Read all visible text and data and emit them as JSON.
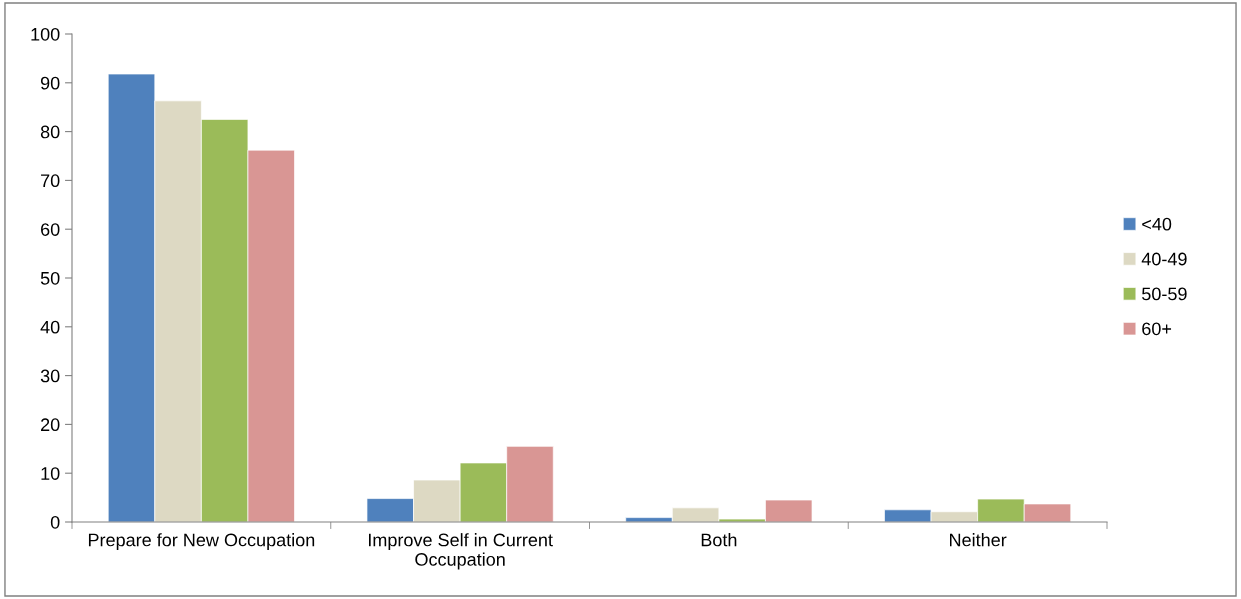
{
  "chart_data": {
    "type": "bar",
    "categories": [
      "Prepare for New Occupation",
      "Improve Self in Current\nOccupation",
      "Both",
      "Neither"
    ],
    "series": [
      {
        "name": "<40",
        "color": "#4f81bd",
        "values": [
          91.8,
          4.8,
          0.9,
          2.5
        ]
      },
      {
        "name": "40-49",
        "color": "#ddd9c3",
        "values": [
          86.3,
          8.6,
          2.9,
          2.1
        ]
      },
      {
        "name": "50-59",
        "color": "#9bbb59",
        "values": [
          82.5,
          12.1,
          0.6,
          4.7
        ]
      },
      {
        "name": "60+",
        "color": "#d99694",
        "values": [
          76.2,
          15.5,
          4.5,
          3.7
        ]
      }
    ],
    "ylim": [
      0,
      100
    ],
    "yticks": [
      0,
      10,
      20,
      30,
      40,
      50,
      60,
      70,
      80,
      90,
      100
    ],
    "grid": false,
    "legend": "right"
  }
}
